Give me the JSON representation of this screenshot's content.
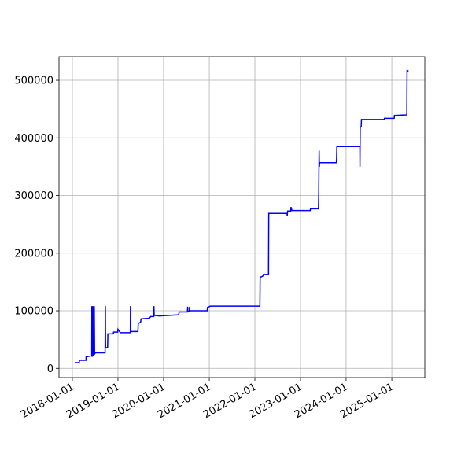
{
  "chart_data": {
    "type": "line",
    "grid": true,
    "x": [
      "2018-01-20",
      "2018-02-25",
      "2018-02-26",
      "2018-04-20",
      "2018-04-21",
      "2018-06-05",
      "2018-06-06",
      "2018-06-08",
      "2018-06-15",
      "2018-06-18",
      "2018-06-25",
      "2018-06-28",
      "2018-07-05",
      "2018-09-20",
      "2018-09-22",
      "2018-09-24",
      "2018-10-10",
      "2018-10-12",
      "2018-11-25",
      "2018-11-27",
      "2018-12-30",
      "2019-01-01",
      "2019-01-20",
      "2019-04-10",
      "2019-04-11",
      "2019-04-12",
      "2019-04-20",
      "2019-06-10",
      "2019-06-12",
      "2019-07-01",
      "2019-07-05",
      "2019-09-10",
      "2019-09-20",
      "2019-10-15",
      "2019-10-16",
      "2019-10-18",
      "2019-12-01",
      "2020-05-01",
      "2020-05-05",
      "2020-07-10",
      "2020-07-12",
      "2020-07-14",
      "2020-07-25",
      "2020-07-27",
      "2020-07-29",
      "2020-12-15",
      "2020-12-18",
      "2021-01-10",
      "2022-02-10",
      "2022-02-12",
      "2022-03-05",
      "2022-03-10",
      "2022-04-20",
      "2022-04-22",
      "2022-09-15",
      "2022-09-17",
      "2022-09-20",
      "2022-10-15",
      "2022-10-17",
      "2022-10-25",
      "2023-03-20",
      "2023-03-22",
      "2023-05-25",
      "2023-05-27",
      "2023-05-30",
      "2023-06-01",
      "2023-06-03",
      "2023-10-15",
      "2023-10-17",
      "2023-10-19",
      "2024-04-20",
      "2024-04-21",
      "2024-04-23",
      "2024-05-01",
      "2024-05-03",
      "2024-11-01",
      "2024-11-03",
      "2025-01-20",
      "2025-01-22",
      "2025-05-01",
      "2025-05-03",
      "2025-05-15"
    ],
    "series": [
      {
        "color": "#0000ff",
        "values": [
          10000,
          10000,
          14000,
          14000,
          20000,
          22000,
          108000,
          20000,
          108000,
          22000,
          108000,
          25000,
          27000,
          27000,
          108000,
          36000,
          36000,
          60000,
          60000,
          63000,
          63000,
          68000,
          62000,
          62000,
          108000,
          63000,
          64000,
          64000,
          78000,
          80000,
          86000,
          87000,
          90000,
          90000,
          108000,
          92000,
          91000,
          93000,
          98000,
          98000,
          107000,
          99000,
          99000,
          107000,
          100000,
          100000,
          106000,
          108000,
          108000,
          158000,
          160000,
          163000,
          163000,
          269000,
          269000,
          265000,
          273000,
          273000,
          280000,
          274000,
          274000,
          277000,
          277000,
          302000,
          378000,
          350000,
          357000,
          357000,
          365000,
          385000,
          385000,
          350000,
          418000,
          420000,
          432000,
          432000,
          434000,
          434000,
          439000,
          440000,
          517000,
          516000
        ]
      }
    ],
    "xlim": [
      "2017-09-16",
      "2025-09-22"
    ],
    "xticks": [
      "2018-01-01",
      "2019-01-01",
      "2020-01-01",
      "2021-01-01",
      "2022-01-01",
      "2023-01-01",
      "2024-01-01",
      "2025-01-01"
    ],
    "ylim": [
      -16000,
      541000
    ],
    "yticks": [
      0,
      100000,
      200000,
      300000,
      400000,
      500000
    ]
  }
}
